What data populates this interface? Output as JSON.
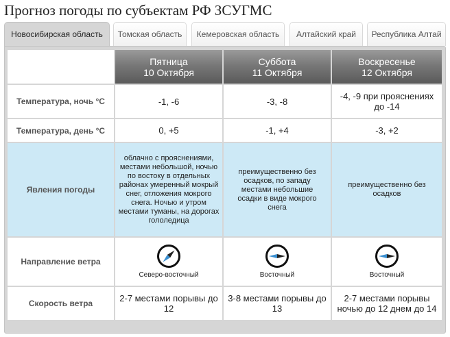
{
  "page": {
    "title": "Прогноз погоды по субъектам РФ ЗСУГМС"
  },
  "tabs": [
    {
      "label": "Новосибирская область",
      "active": true
    },
    {
      "label": "Томская область",
      "active": false
    },
    {
      "label": "Кемеровская область",
      "active": false
    },
    {
      "label": "Алтайский край",
      "active": false
    },
    {
      "label": "Республика Алтай",
      "active": false
    }
  ],
  "days": [
    {
      "weekday": "Пятница",
      "date": "10 Октября"
    },
    {
      "weekday": "Суббота",
      "date": "11 Октября"
    },
    {
      "weekday": "Воскресенье",
      "date": "12 Октября"
    }
  ],
  "rows": {
    "night_temp": {
      "label": "Температура, ночь °C",
      "values": [
        "-1, -6",
        "-3, -8",
        "-4, -9 при прояснениях до -14"
      ]
    },
    "day_temp": {
      "label": "Температура, день °C",
      "values": [
        "0, +5",
        "-1, +4",
        "-3, +2"
      ]
    },
    "phenomena": {
      "label": "Явления погоды",
      "values": [
        "облачно с прояснениями, местами небольшой, ночью по востоку в отдельных районах умеренный мокрый снег, отложения мокрого снега. Ночью и утром местами туманы, на дорогах гололедица",
        "преимущественно без осадков, по западу местами небольшие осадки в виде мокрого снега",
        "преимущественно без осадков"
      ]
    },
    "wind_direction": {
      "label": "Направление ветра",
      "values": [
        {
          "text": "Северо-восточный",
          "icon": "compass-northeast-icon",
          "bearing_deg": 45
        },
        {
          "text": "Восточный",
          "icon": "compass-east-icon",
          "bearing_deg": 90
        },
        {
          "text": "Восточный",
          "icon": "compass-east-icon",
          "bearing_deg": 90
        }
      ]
    },
    "wind_speed": {
      "label": "Скорость ветра",
      "values": [
        "2-7 местами порывы до 12",
        "3-8 местами порывы до 13",
        "2-7 местами порывы ночью до 12 днем до 14"
      ]
    }
  },
  "colors": {
    "header_gradient_top": "#9a9a9a",
    "header_gradient_bottom": "#5a5a5a",
    "row_white": "#ffffff",
    "row_blue": "#cde9f6",
    "panel_gray": "#d6d6d6",
    "compass_needle_dark": "#222222",
    "compass_needle_blue": "#3a8fd0"
  }
}
